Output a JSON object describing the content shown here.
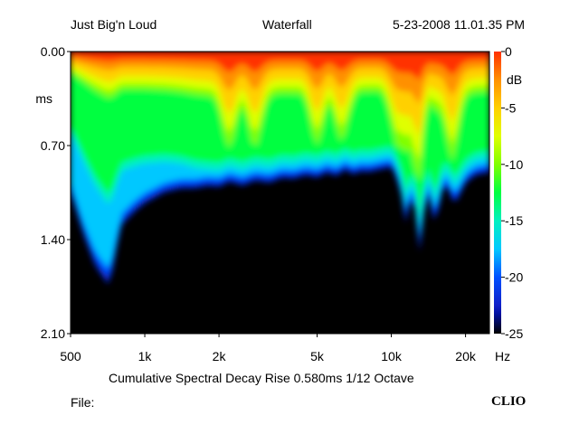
{
  "header": {
    "left": "Just Big'n Loud",
    "center": "Waterfall",
    "right": "5-23-2008 11.01.35 PM"
  },
  "footer": {
    "caption": "Cumulative Spectral Decay   Rise 0.580ms   1/12 Octave",
    "file_label": "File:",
    "brand": "CLIO"
  },
  "colors": {
    "background": "#000000",
    "floor": "#000000",
    "colormap": [
      "#1020c8",
      "#0050ff",
      "#00c8ff",
      "#00f0c0",
      "#00ff40",
      "#80ff00",
      "#e0ff00",
      "#ffd000",
      "#ff9000",
      "#ff3000"
    ]
  },
  "chart_data": {
    "type": "heatmap",
    "title": "Waterfall",
    "subtitle": "Cumulative Spectral Decay",
    "x_scale": "log",
    "xlim": [
      500,
      25000
    ],
    "x_ticks": [
      500,
      1000,
      2000,
      5000,
      10000,
      20000
    ],
    "x_tick_labels": [
      "500",
      "1k",
      "2k",
      "5k",
      "10k",
      "20k"
    ],
    "x_unit": "Hz",
    "ylim": [
      0.0,
      2.1
    ],
    "y_ticks": [
      0.0,
      0.7,
      1.4,
      2.1
    ],
    "y_tick_labels": [
      "0.00",
      "0.70",
      "1.40",
      "2.10"
    ],
    "y_unit": "ms",
    "colorbar": {
      "range": [
        -25,
        0
      ],
      "ticks": [
        0,
        -5,
        -10,
        -15,
        -20,
        -25
      ],
      "tick_labels": [
        "0",
        "-5",
        "-10",
        "-15",
        "-20",
        "-25"
      ],
      "unit": "dB"
    },
    "decay_edge": {
      "freqs": [
        500,
        560,
        630,
        720,
        800,
        900,
        1000,
        1200,
        1400,
        1600,
        1800,
        2000,
        2200,
        2500,
        2800,
        3200,
        3600,
        4000,
        4500,
        5000,
        5500,
        6000,
        6500,
        7000,
        7500,
        8000,
        9000,
        10000,
        10800,
        11500,
        12200,
        13000,
        14000,
        15000,
        16500,
        18000,
        20000,
        22000,
        25000
      ],
      "ms": [
        1.05,
        1.35,
        1.6,
        1.75,
        1.3,
        1.2,
        1.13,
        1.05,
        1.02,
        1.02,
        1.0,
        1.01,
        0.97,
        1.0,
        0.96,
        0.98,
        0.94,
        0.95,
        0.92,
        0.94,
        0.9,
        0.93,
        0.88,
        0.92,
        0.89,
        0.9,
        0.88,
        0.86,
        1.0,
        1.3,
        1.0,
        1.5,
        1.0,
        1.3,
        0.96,
        1.15,
        0.98,
        0.92,
        0.9
      ]
    },
    "peak_regions_hz": [
      2200,
      2800,
      5000,
      6300,
      10500,
      12500,
      17500
    ]
  }
}
